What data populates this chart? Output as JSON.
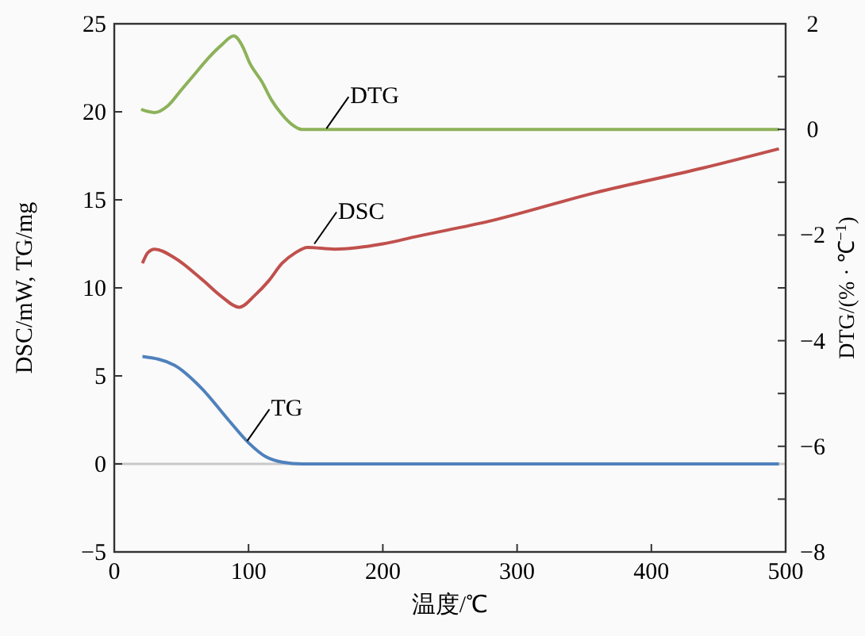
{
  "chart_data": {
    "type": "line",
    "xlabel": "温度/℃",
    "ylabel": "DSC/mW, TG/mg",
    "y2label": "DTG/(% · ℃$^{−1}$)",
    "xlim": [
      0,
      500
    ],
    "xticks": [
      0,
      100,
      200,
      300,
      400,
      500
    ],
    "ylim": [
      -5,
      25
    ],
    "yticks": [
      -5,
      0,
      5,
      10,
      15,
      20,
      25
    ],
    "y2lim": [
      -8,
      2
    ],
    "y2ticks": [
      -8,
      {
        "value": -7,
        "label": null
      },
      -6,
      {
        "value": -5,
        "label": null
      },
      -4,
      {
        "value": -3,
        "label": null
      },
      -2,
      {
        "value": -1,
        "label": null
      },
      0,
      {
        "value": 1,
        "label": null
      },
      2
    ],
    "marker": "none",
    "line_style": "solid",
    "ref_lines": [
      {
        "axis": "y",
        "value": 0,
        "label": null,
        "color": "#c8c8c8"
      }
    ],
    "series": [
      {
        "color": "#8db25a",
        "axis": "y2",
        "x": [
          20,
          25,
          30,
          40,
          50,
          60,
          70,
          80,
          89,
          95,
          101,
          110,
          117,
          125,
          132,
          140,
          160,
          200,
          300,
          400,
          495
        ],
        "values": [
          0.38,
          0.34,
          0.32,
          0.45,
          0.75,
          1.05,
          1.35,
          1.6,
          1.77,
          1.6,
          1.25,
          0.9,
          0.56,
          0.28,
          0.1,
          0.0,
          0,
          0,
          0,
          0,
          0
        ]
      },
      {
        "color": "#c0504d",
        "x": [
          21,
          25,
          30,
          45,
          65,
          80,
          93,
          105,
          115,
          125,
          135,
          144,
          164,
          200,
          224,
          280,
          358,
          438,
          495
        ],
        "values": [
          11.4,
          12.0,
          12.2,
          11.7,
          10.5,
          9.5,
          8.9,
          9.6,
          10.4,
          11.4,
          12.0,
          12.3,
          12.2,
          12.5,
          12.9,
          13.8,
          15.4,
          16.8,
          17.9
        ]
      },
      {
        "color": "#4f81bd",
        "x": [
          21,
          45,
          65,
          85,
          100,
          113,
          125,
          140,
          160,
          200,
          300,
          400,
          495
        ],
        "values": [
          6.1,
          5.6,
          4.3,
          2.5,
          1.2,
          0.4,
          0.1,
          0,
          0,
          0,
          0,
          0,
          0
        ]
      }
    ],
    "annotations": [
      {
        "text": "DTG",
        "x": 158,
        "y": 19.05
      },
      {
        "text": "DSC",
        "x": 149,
        "y": 12.5
      },
      {
        "text": "TG",
        "x": 99,
        "y": 1.3
      }
    ]
  }
}
